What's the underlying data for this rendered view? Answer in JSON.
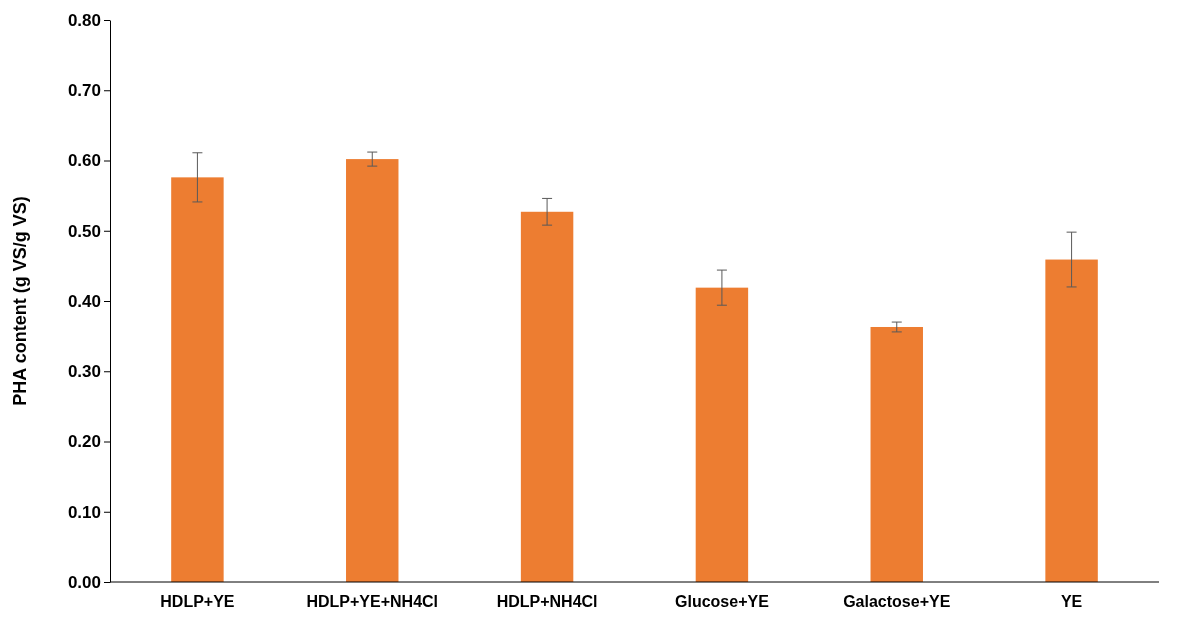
{
  "chart_data": {
    "type": "bar",
    "ylabel": "PHA content (g VS/g VS)",
    "categories": [
      "HDLP+YE",
      "HDLP+YE+NH4Cl",
      "HDLP+NH4Cl",
      "Glucose+YE",
      "Galactose+YE",
      "YE"
    ],
    "values": [
      0.576,
      0.602,
      0.527,
      0.419,
      0.363,
      0.459
    ],
    "errors": [
      0.035,
      0.01,
      0.019,
      0.025,
      0.007,
      0.039
    ],
    "color": "#ed7d31",
    "ylim": [
      0,
      0.8
    ],
    "yticks": [
      {
        "value": 0,
        "label": "0.00"
      },
      {
        "value": 0.1,
        "label": "0.10"
      },
      {
        "value": 0.2,
        "label": "0.20"
      },
      {
        "value": 0.3,
        "label": "0.30"
      },
      {
        "value": 0.4,
        "label": "0.40"
      },
      {
        "value": 0.5,
        "label": "0.50"
      },
      {
        "value": 0.6,
        "label": "0.60"
      },
      {
        "value": 0.7,
        "label": "0.70"
      },
      {
        "value": 0.8,
        "label": "0.80"
      }
    ]
  }
}
